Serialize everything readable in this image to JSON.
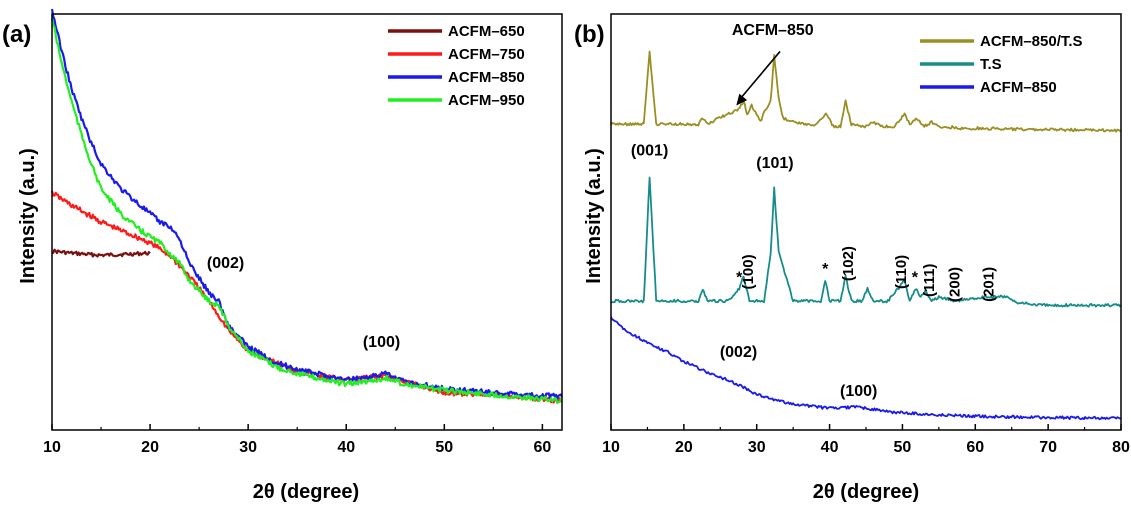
{
  "chart_data": [
    {
      "panel": "(a)",
      "type": "line",
      "xlabel": "2θ (degree)",
      "ylabel": "Intensity (a.u.)",
      "xlim": [
        10,
        62
      ],
      "ylim": [
        0,
        100
      ],
      "xticks": [
        10,
        20,
        30,
        40,
        50,
        60
      ],
      "show_yticks": false,
      "legend_position": "top-right",
      "series": [
        {
          "name": "ACFM–650",
          "color": "#7a1010",
          "x": [
            10,
            12,
            15,
            18,
            20
          ],
          "y": [
            43,
            42.5,
            42,
            42.3,
            42.5
          ]
        },
        {
          "name": "ACFM–750",
          "color": "#ff1a1a",
          "x": [
            10,
            12,
            15,
            18,
            20,
            22,
            24,
            26,
            28,
            30,
            35,
            40,
            44,
            50,
            55,
            62
          ],
          "y": [
            57,
            54,
            50,
            47,
            45,
            42,
            37,
            31,
            24,
            19,
            14,
            12,
            13,
            9,
            8.5,
            7
          ]
        },
        {
          "name": "ACFM–850",
          "color": "#1a1aee",
          "x": [
            10,
            11,
            12,
            13,
            14,
            15,
            17,
            19,
            21,
            22,
            23,
            24,
            26,
            27,
            28,
            30,
            33,
            36,
            40,
            43,
            44,
            46,
            50,
            55,
            62
          ],
          "y": [
            101,
            91,
            82,
            75,
            69,
            64,
            58,
            54,
            50,
            49,
            46,
            40,
            33,
            31,
            25,
            20,
            16,
            14,
            12,
            13,
            13.5,
            11.5,
            10,
            9,
            8
          ]
        },
        {
          "name": "ACFM–950",
          "color": "#22ee22",
          "x": [
            10,
            11,
            12,
            13,
            14,
            15,
            17,
            19,
            21,
            23,
            24,
            26,
            27,
            28,
            30,
            33,
            36,
            40,
            43,
            44,
            46,
            50,
            55,
            62
          ],
          "y": [
            99,
            88,
            79,
            71,
            64,
            58,
            52,
            48,
            45,
            40,
            36,
            31,
            30,
            25,
            19,
            15,
            13,
            11,
            12,
            12.5,
            11,
            9.5,
            8.5,
            7
          ]
        }
      ],
      "annotations": [
        {
          "text": "(002)",
          "x": 27.7,
          "y": 39
        },
        {
          "text": "(100)",
          "x": 43.6,
          "y": 20
        }
      ]
    },
    {
      "panel": "(b)",
      "type": "line",
      "xlabel": "2θ (degree)",
      "ylabel": "Intensity (a.u.)",
      "xlim": [
        10,
        80
      ],
      "ylim": [
        0,
        100
      ],
      "xticks": [
        10,
        20,
        30,
        40,
        50,
        60,
        70,
        80
      ],
      "show_yticks": false,
      "legend_position": "top-right",
      "series": [
        {
          "name": "ACFM–850/T.S",
          "color": "#9a8f22",
          "x": [
            10,
            14.5,
            15.3,
            16.2,
            20,
            22,
            22.6,
            23.2,
            26,
            27.5,
            28.2,
            28.7,
            29.3,
            30.5,
            31.2,
            31.9,
            32.4,
            33,
            33.6,
            35,
            38,
            39.5,
            40.5,
            41.5,
            42.2,
            43,
            45,
            46,
            47,
            49,
            50.3,
            51,
            52,
            53,
            54,
            55.5,
            57,
            58,
            61,
            64,
            67,
            70,
            74,
            80
          ],
          "y": [
            73.5,
            73.5,
            91,
            73.5,
            73.5,
            73.5,
            75,
            73.5,
            76,
            77,
            79,
            76,
            78,
            74,
            77,
            79,
            90,
            80,
            75,
            74,
            73,
            76,
            73,
            73,
            79,
            73.5,
            73,
            74,
            73,
            73,
            76,
            73.5,
            75,
            73,
            74,
            72.5,
            72.8,
            72.5,
            72.5,
            72.4,
            72.3,
            72.3,
            72.1,
            72
          ]
        },
        {
          "name": "T.S",
          "color": "#178c8c",
          "x": [
            10,
            14.5,
            15.3,
            16.2,
            20,
            22,
            22.6,
            23.2,
            26,
            27.6,
            28.2,
            29,
            31,
            31.9,
            32.4,
            33,
            35,
            38.8,
            39.4,
            40,
            41.5,
            42.2,
            43,
            44.5,
            45.2,
            46,
            48,
            50.3,
            51,
            51.8,
            52.5,
            53.2,
            54,
            55,
            57,
            61,
            64.5,
            66,
            70,
            80
          ],
          "y": [
            31,
            31,
            61,
            31,
            31,
            31,
            34,
            31,
            31,
            34,
            37,
            31,
            31,
            42,
            58,
            43,
            31,
            31,
            36,
            31,
            31,
            37,
            31,
            31,
            34,
            31,
            31,
            36,
            31,
            34,
            32,
            33.5,
            31,
            32,
            31,
            32,
            32,
            30.5,
            30,
            30
          ]
        },
        {
          "name": "ACFM–850",
          "color": "#1a1aee",
          "x": [
            10,
            12,
            15,
            18,
            20,
            23,
            26,
            28,
            30,
            33,
            36,
            40,
            44,
            48,
            55,
            62,
            70,
            80
          ],
          "y": [
            27,
            24,
            21,
            18.5,
            16.5,
            14,
            12,
            10.5,
            8.5,
            7,
            6,
            5.2,
            5.5,
            4.4,
            3.6,
            3.2,
            3,
            2.8
          ]
        }
      ],
      "annotations": [
        {
          "text": "ACFM–850",
          "x": 32.2,
          "y": 95
        },
        {
          "text": "(001)",
          "x": 15.3,
          "y": 66
        },
        {
          "text": "(101)",
          "x": 32.5,
          "y": 63
        },
        {
          "text": "(100)",
          "x": 29.5,
          "y": 38
        },
        {
          "text": "(102)",
          "x": 43.2,
          "y": 40
        },
        {
          "text": "(110)",
          "x": 50.5,
          "y": 38
        },
        {
          "text": "(111)",
          "x": 54.3,
          "y": 36
        },
        {
          "text": "(200)",
          "x": 57.8,
          "y": 35
        },
        {
          "text": "(201)",
          "x": 62.5,
          "y": 35
        },
        {
          "text": "(002)",
          "x": 27.5,
          "y": 17.5
        },
        {
          "text": "(100)",
          "x": 44,
          "y": 8.2
        },
        {
          "text": "*",
          "x": 27.6,
          "y": 35.5
        },
        {
          "text": "*",
          "x": 39.4,
          "y": 37.5
        },
        {
          "text": "*",
          "x": 51.7,
          "y": 35.5
        }
      ]
    }
  ]
}
